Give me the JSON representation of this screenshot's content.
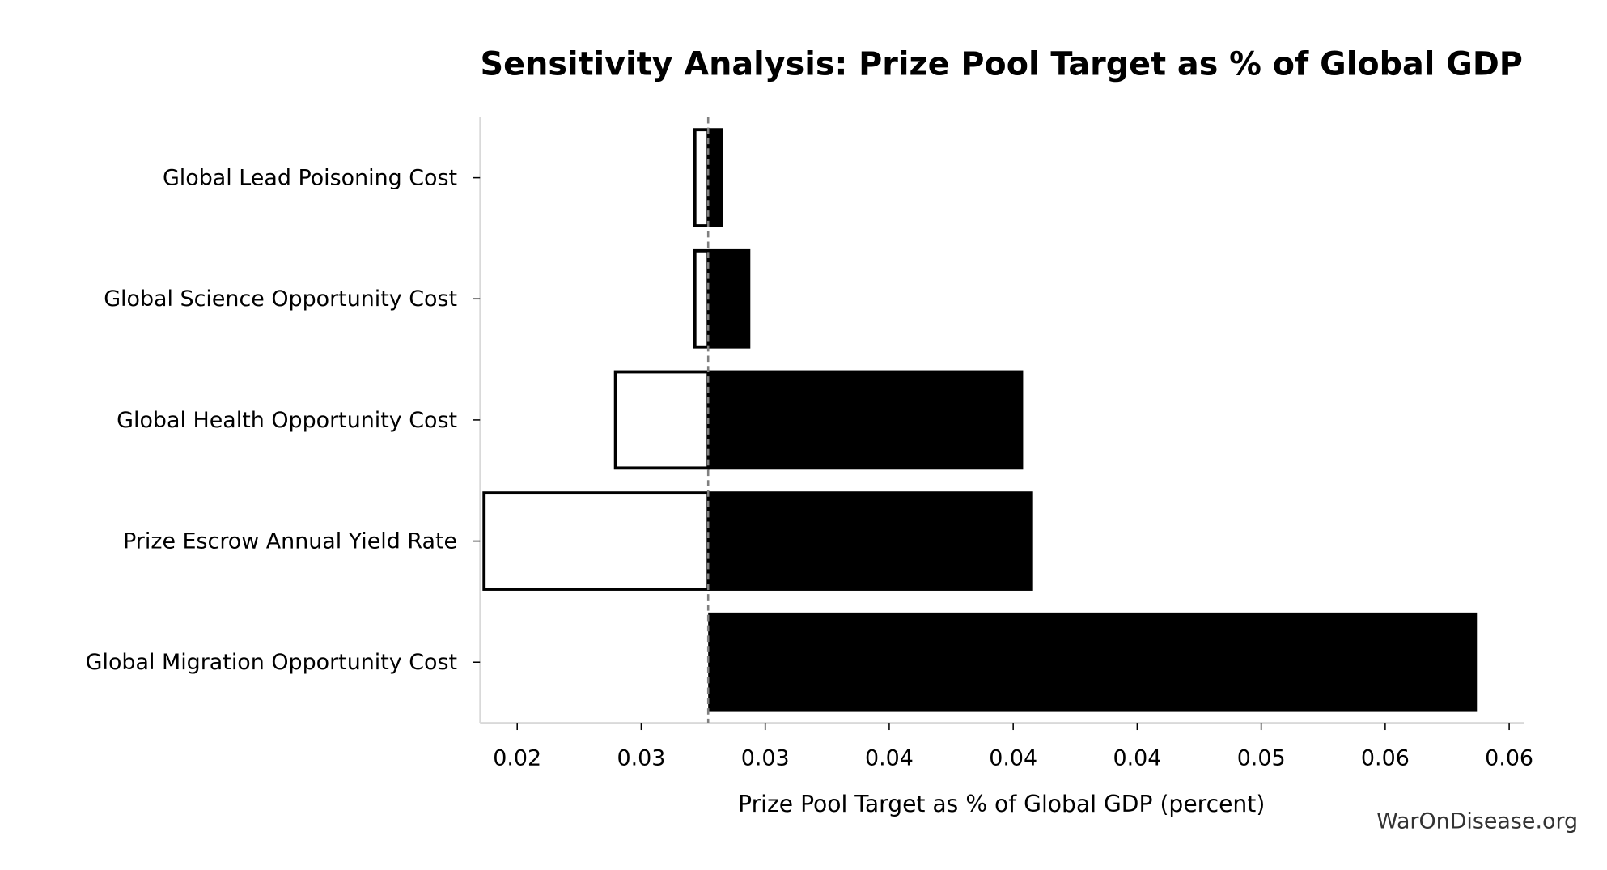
{
  "chart_data": {
    "type": "bar",
    "orientation": "horizontal",
    "subtype": "tornado",
    "title": "Sensitivity Analysis: Prize Pool Target as % of Global GDP",
    "xlabel": "Prize Pool Target as % of Global GDP (percent)",
    "ylabel": "",
    "baseline": 0.0277,
    "xlim": [
      0.0185,
      0.0606
    ],
    "xticks": [
      0.02,
      0.025,
      0.03,
      0.035,
      0.04,
      0.045,
      0.05,
      0.055,
      0.06
    ],
    "xtick_labels": [
      "0.02",
      "0.03",
      "0.03",
      "0.04",
      "0.04",
      "0.04",
      "0.05",
      "0.06",
      "0.06"
    ],
    "categories": [
      "Global Lead Poisoning Cost",
      "Global Science Opportunity Cost",
      "Global Health Opportunity Cost",
      "Prize Escrow Annual Yield Rate",
      "Global Migration Opportunity Cost"
    ],
    "low": [
      0.0271,
      0.0271,
      0.0239,
      0.0186,
      0.0277
    ],
    "high": [
      0.0283,
      0.0294,
      0.0404,
      0.0408,
      0.0587
    ],
    "colors": {
      "high": "#000000",
      "low_fill": "#ffffff",
      "low_edge": "#000000",
      "baseline": "#808080",
      "spine": "#d9d9d9"
    },
    "grid": false,
    "legend": "none"
  },
  "watermark": "WarOnDisease.org"
}
